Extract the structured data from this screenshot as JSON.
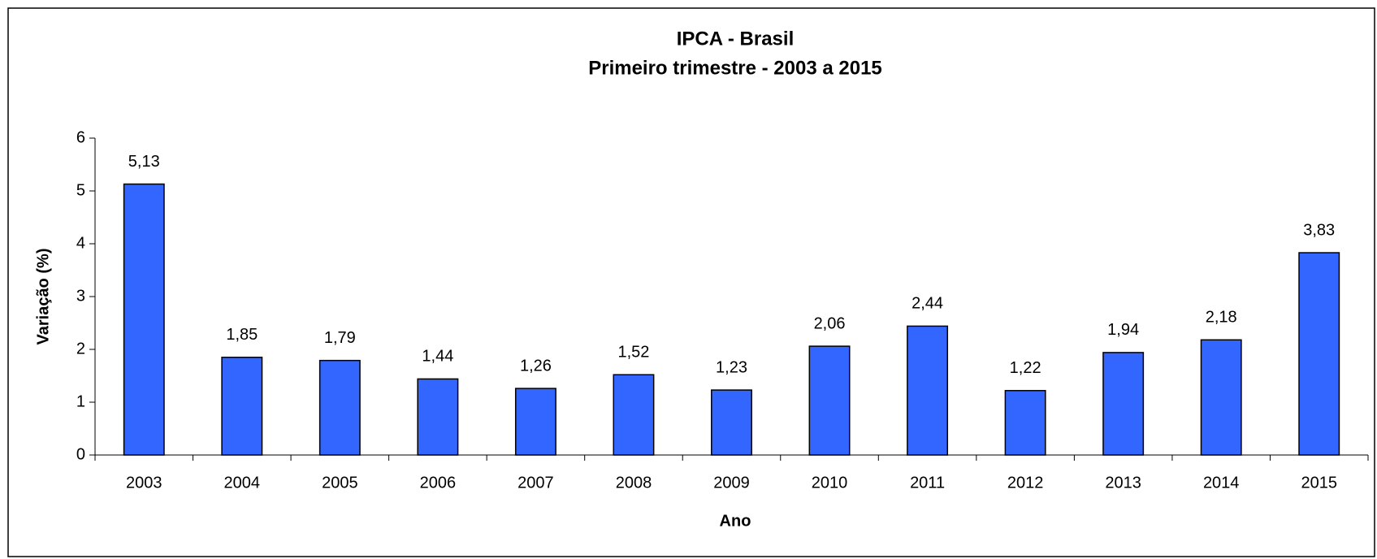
{
  "chart_data": {
    "type": "bar",
    "title": "IPCA - Brasil",
    "subtitle": "Primeiro trimestre - 2003 a 2015",
    "x_label": "Ano",
    "y_label": "Variação (%)",
    "categories": [
      "2003",
      "2004",
      "2005",
      "2006",
      "2007",
      "2008",
      "2009",
      "2010",
      "2011",
      "2012",
      "2013",
      "2014",
      "2015"
    ],
    "values": [
      5.13,
      1.85,
      1.79,
      1.44,
      1.26,
      1.52,
      1.23,
      2.06,
      2.44,
      1.22,
      1.94,
      2.18,
      3.83
    ],
    "value_labels": [
      "5,13",
      "1,85",
      "1,79",
      "1,44",
      "1,26",
      "1,52",
      "1,23",
      "2,06",
      "2,44",
      "1,22",
      "1,94",
      "2,18",
      "3,83"
    ],
    "color": "#3366ff",
    "ylim": [
      0,
      6
    ],
    "yticks": [
      0,
      1,
      2,
      3,
      4,
      5,
      6
    ]
  }
}
